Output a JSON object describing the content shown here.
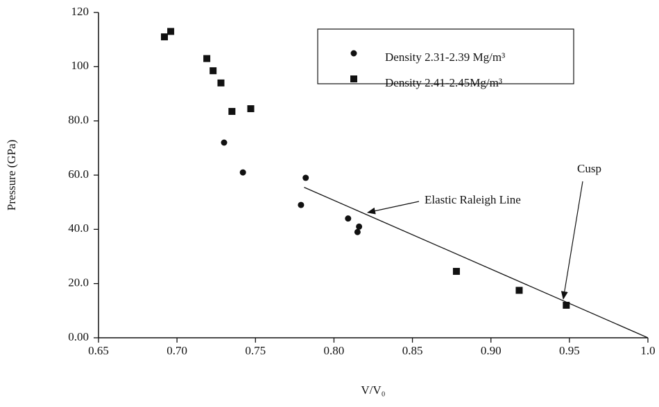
{
  "chart_data": {
    "type": "scatter",
    "x_label": "V/V₀",
    "y_label": "Pressure (GPa)",
    "xlim": [
      0.65,
      1.0
    ],
    "ylim": [
      0,
      120
    ],
    "xticks": [
      0.65,
      {
        "value": 0.7,
        "label": "0.70"
      },
      0.75,
      {
        "value": 0.8,
        "label": "0.80"
      },
      0.85,
      {
        "value": 0.9,
        "label": "0.90"
      },
      0.95,
      {
        "value": 1.0,
        "label": "1.0"
      }
    ],
    "yticks": [
      {
        "value": 0,
        "label": "0.00"
      },
      {
        "value": 20,
        "label": "20.0"
      },
      {
        "value": 40,
        "label": "40.0"
      },
      {
        "value": 60,
        "label": "60.0"
      },
      {
        "value": 80,
        "label": "80.0"
      },
      100,
      120
    ],
    "series": [
      {
        "name": "Density 2.31-2.39 Mg/m³",
        "marker": "circle",
        "color": "#111111",
        "x": [
          0.73,
          0.742,
          0.782,
          0.779,
          0.809,
          0.816,
          0.815
        ],
        "values": [
          72,
          61,
          59,
          49,
          44,
          41,
          39
        ]
      },
      {
        "name": "Density 2.41-2.45Mg/m³",
        "marker": "square",
        "color": "#111111",
        "x": [
          0.692,
          0.696,
          0.719,
          0.723,
          0.728,
          0.735,
          0.747,
          0.878,
          0.918,
          0.948
        ],
        "values": [
          111,
          113,
          103,
          98.5,
          94,
          83.5,
          84.5,
          24.5,
          17.5,
          12
        ]
      }
    ],
    "fit_line": {
      "x": [
        0.781,
        1.0
      ],
      "values": [
        55.5,
        0
      ]
    },
    "annotations": [
      "Elastic Raleigh Line",
      "Cusp"
    ]
  }
}
